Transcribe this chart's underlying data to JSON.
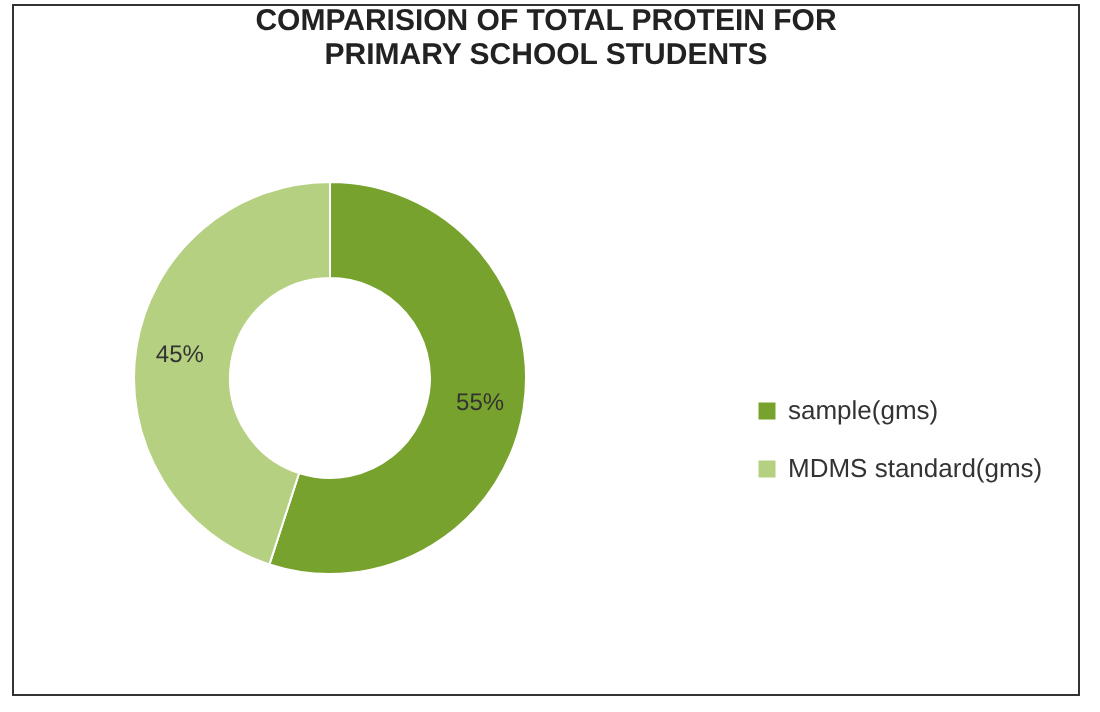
{
  "chart_data": {
    "type": "donut",
    "title": "COMPARISION OF TOTAL PROTEIN  FOR PRIMARY SCHOOL STUDENTS",
    "categories": [
      "sample(gms)",
      "MDMS standard(gms)"
    ],
    "values": [
      55,
      45
    ],
    "colors": [
      "#77a22d",
      "#b5d080"
    ],
    "value_labels": [
      "55%",
      "45%"
    ],
    "legend": "right"
  }
}
